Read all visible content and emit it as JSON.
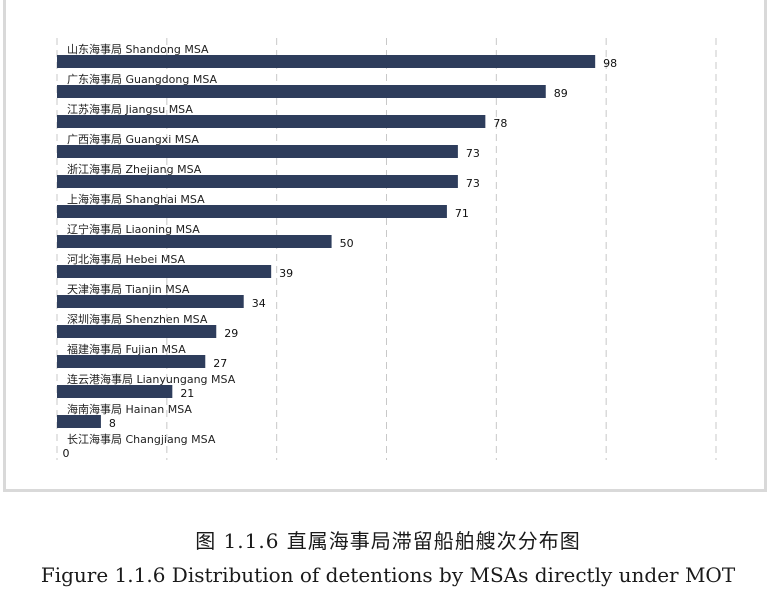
{
  "chart_data": {
    "type": "bar",
    "orientation": "horizontal",
    "categories": [
      "山东海事局 Shandong MSA",
      "广东海事局 Guangdong MSA",
      "江苏海事局 Jiangsu MSA",
      "广西海事局 Guangxi MSA",
      "浙江海事局 Zhejiang MSA",
      "上海海事局 Shanghai MSA",
      "辽宁海事局 Liaoning MSA",
      "河北海事局 Hebei MSA",
      "天津海事局 Tianjin MSA",
      "深圳海事局 Shenzhen MSA",
      "福建海事局 Fujian MSA",
      "连云港海事局 Lianyungang MSA",
      "海南海事局 Hainan MSA",
      "长江海事局 Changjiang MSA"
    ],
    "values": [
      98,
      89,
      78,
      73,
      73,
      71,
      50,
      39,
      34,
      29,
      27,
      21,
      8,
      0
    ],
    "xlim": [
      0,
      120
    ],
    "grid": "vertical dashed",
    "bar_color": "#2e3d5c"
  },
  "caption": {
    "chinese": "图 1.1.6 直属海事局滞留船舶艘次分布图",
    "english": "Figure 1.1.6 Distribution of detentions by MSAs directly under MOT"
  }
}
